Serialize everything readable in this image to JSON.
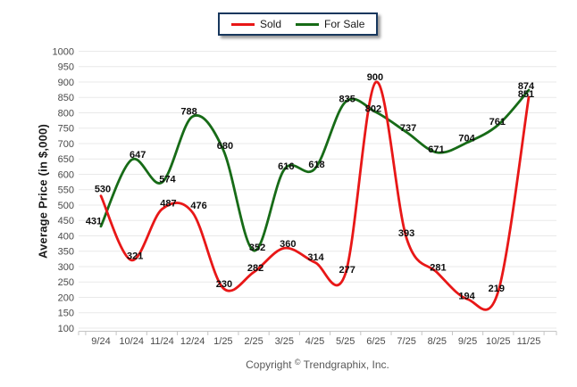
{
  "legend": {
    "items": [
      {
        "label": "Sold",
        "color": "#e81717"
      },
      {
        "label": "For Sale",
        "color": "#176b17"
      }
    ]
  },
  "chart_data": {
    "type": "line",
    "smooth": true,
    "categories": [
      "9/24",
      "10/24",
      "11/24",
      "12/24",
      "1/25",
      "2/25",
      "3/25",
      "4/25",
      "5/25",
      "6/25",
      "7/25",
      "8/25",
      "9/25",
      "10/25",
      "11/25"
    ],
    "series": [
      {
        "name": "Sold",
        "color": "#e81717",
        "values": [
          530,
          321,
          487,
          476,
          230,
          282,
          360,
          314,
          277,
          900,
          393,
          281,
          194,
          219,
          851
        ]
      },
      {
        "name": "For Sale",
        "color": "#176b17",
        "values": [
          431,
          647,
          574,
          788,
          680,
          352,
          616,
          618,
          835,
          802,
          737,
          671,
          704,
          761,
          874
        ]
      }
    ],
    "title": "",
    "xlabel": "",
    "ylabel": "Average Price (in $,000)",
    "ylim": [
      100,
      1000
    ],
    "ytick_step": 50,
    "grid": true,
    "legend_position": "top-center",
    "show_data_labels": true
  },
  "footer": {
    "copyright_prefix": "Copyright",
    "copyright_symbol": "©",
    "copyright_suffix": "Trendgraphix, Inc."
  },
  "colors": {
    "sold": "#e81717",
    "for_sale": "#176b17",
    "legend_border": "#17375d",
    "gridline": "#e9e9e9",
    "axis_line": "#c4c4c4",
    "tick_label": "#4a4a4a",
    "data_label": "#0d0d0d",
    "copyright_text": "#595959"
  }
}
